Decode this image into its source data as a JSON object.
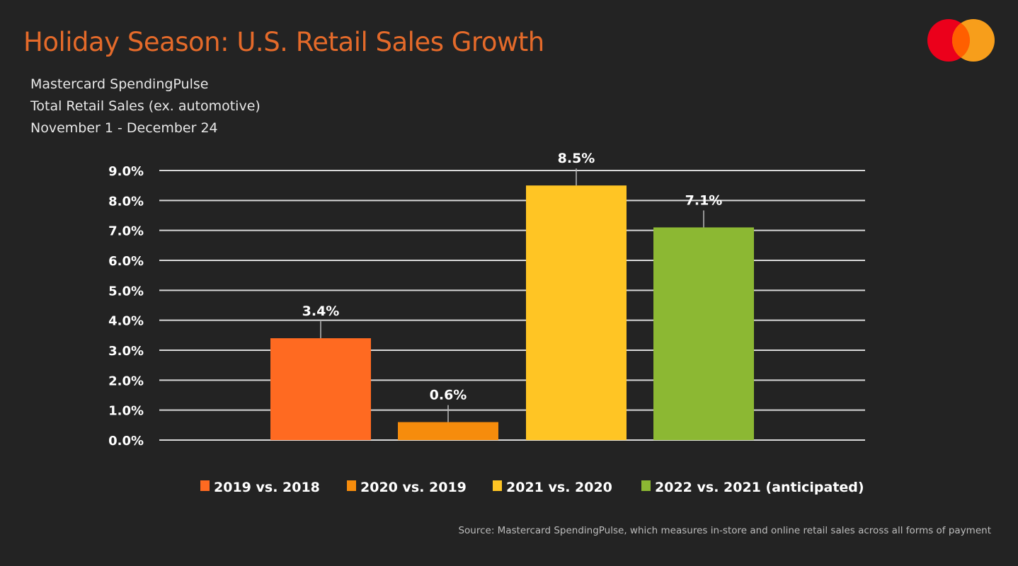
{
  "chart_data": {
    "type": "bar",
    "title": "Holiday Season: U.S. Retail Sales Growth",
    "subtitle": [
      "Mastercard SpendingPulse",
      "Total Retail Sales (ex. automotive)",
      "November 1  - December 24"
    ],
    "categories": [
      "2019 vs. 2018",
      "2020 vs. 2019",
      "2021 vs. 2020",
      "2022 vs. 2021 (anticipated)"
    ],
    "values": [
      3.4,
      0.6,
      8.5,
      7.1
    ],
    "data_labels": [
      "3.4%",
      "0.6%",
      "8.5%",
      "7.1%"
    ],
    "colors": [
      "#ff6a21",
      "#f68c0c",
      "#ffc524",
      "#8cb833"
    ],
    "ylim": [
      0,
      9
    ],
    "yticks": [
      "0.0%",
      "1.0%",
      "2.0%",
      "3.0%",
      "4.0%",
      "5.0%",
      "6.0%",
      "7.0%",
      "8.0%",
      "9.0%"
    ],
    "grid": true,
    "legend_position": "bottom",
    "source": "Source: Mastercard SpendingPulse, which measures in-store and online retail sales across all forms of payment"
  },
  "logo": {
    "name": "mastercard-logo",
    "colors": [
      "#eb001b",
      "#f79e1b",
      "#ff5f00"
    ]
  }
}
